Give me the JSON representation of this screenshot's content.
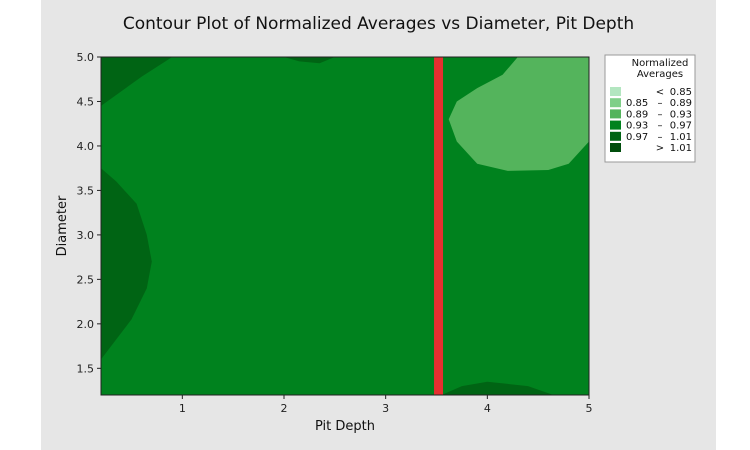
{
  "chart_data": {
    "type": "contour",
    "title": "Contour Plot of Normalized Averages vs Diameter, Pit Depth",
    "xlabel": "Pit Depth",
    "ylabel": "Diameter",
    "xlim": [
      0.2,
      5.0
    ],
    "ylim": [
      1.2,
      5.0
    ],
    "x_ticks": [
      1,
      2,
      3,
      4,
      5
    ],
    "x_tick_labels": [
      "1",
      "2",
      "3",
      "4",
      "5"
    ],
    "y_ticks": [
      1.5,
      2.0,
      2.5,
      3.0,
      3.5,
      4.0,
      4.5,
      5.0
    ],
    "y_tick_labels": [
      "1.5",
      "2.0",
      "2.5",
      "3.0",
      "3.5",
      "4.0",
      "4.5",
      "5.0"
    ],
    "legend": {
      "title_lines": [
        "Normalized",
        "Averages"
      ],
      "placement": "right",
      "entries": [
        {
          "op": "<",
          "low": "",
          "high": "0.85",
          "color": "#b3e6c0"
        },
        {
          "op": "",
          "low": "0.85",
          "high": "0.89",
          "color": "#7fcf88"
        },
        {
          "op": "",
          "low": "0.89",
          "high": "0.93",
          "color": "#54b45c"
        },
        {
          "op": "",
          "low": "0.93",
          "high": "0.97",
          "color": "#00821e"
        },
        {
          "op": "",
          "low": "0.97",
          "high": "1.01",
          "color": "#006414"
        },
        {
          "op": ">",
          "low": "",
          "high": "1.01",
          "color": "#004d0c"
        }
      ]
    },
    "background_level_color": "#00821e",
    "regions": [
      {
        "level": "0.97 - 1.01",
        "color": "#006414",
        "points": [
          [
            0.2,
            3.75
          ],
          [
            0.35,
            3.6
          ],
          [
            0.55,
            3.35
          ],
          [
            0.65,
            3.0
          ],
          [
            0.7,
            2.7
          ],
          [
            0.65,
            2.4
          ],
          [
            0.5,
            2.05
          ],
          [
            0.2,
            1.6
          ]
        ]
      },
      {
        "level": "0.97 - 1.01",
        "color": "#006414",
        "points": [
          [
            0.2,
            5.0
          ],
          [
            0.9,
            5.0
          ],
          [
            0.6,
            4.78
          ],
          [
            0.2,
            4.45
          ]
        ]
      },
      {
        "level": "0.97 - 1.01",
        "color": "#006414",
        "points": [
          [
            2.0,
            5.0
          ],
          [
            2.5,
            5.0
          ],
          [
            2.35,
            4.93
          ],
          [
            2.15,
            4.95
          ]
        ]
      },
      {
        "level": "0.97 - 1.01",
        "color": "#006414",
        "points": [
          [
            3.55,
            1.2
          ],
          [
            4.65,
            1.2
          ],
          [
            4.4,
            1.3
          ],
          [
            4.0,
            1.35
          ],
          [
            3.75,
            1.3
          ]
        ]
      },
      {
        "level": "0.89 - 0.93",
        "color": "#54b45c",
        "points": [
          [
            4.3,
            5.0
          ],
          [
            5.0,
            5.0
          ],
          [
            5.0,
            4.05
          ],
          [
            4.8,
            3.8
          ],
          [
            4.6,
            3.73
          ],
          [
            4.2,
            3.72
          ],
          [
            3.9,
            3.8
          ],
          [
            3.7,
            4.05
          ],
          [
            3.62,
            4.3
          ],
          [
            3.7,
            4.5
          ],
          [
            3.9,
            4.65
          ],
          [
            4.15,
            4.8
          ]
        ]
      }
    ],
    "reference_line": {
      "x": 3.52,
      "color": "#e53030"
    }
  }
}
